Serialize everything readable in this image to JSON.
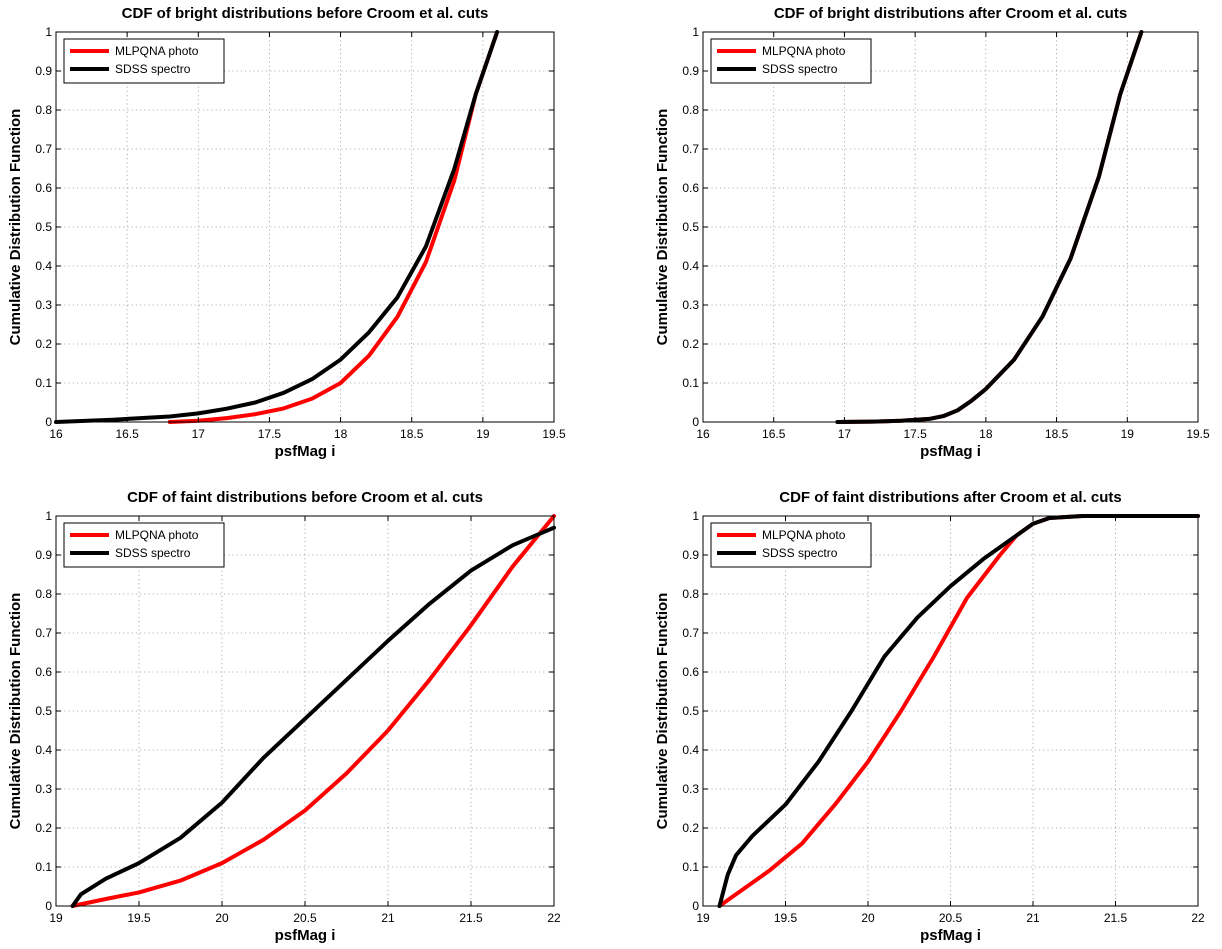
{
  "chart_data": [
    {
      "type": "line",
      "title": "CDF of bright distributions before Croom et al. cuts",
      "xlabel": "psfMag i",
      "ylabel": "Cumulative Distribution Function",
      "xlim": [
        16,
        19.5
      ],
      "ylim": [
        0,
        1
      ],
      "xticks": [
        "16",
        "16.5",
        "17",
        "17.5",
        "18",
        "18.5",
        "19",
        "19.5"
      ],
      "yticks": [
        "0",
        "0.1",
        "0.2",
        "0.3",
        "0.4",
        "0.5",
        "0.6",
        "0.7",
        "0.8",
        "0.9",
        "1"
      ],
      "grid": true,
      "legend_position": "top-left",
      "series": [
        {
          "name": "MLPQNA photo",
          "color": "#ff0000",
          "x": [
            16.8,
            17.0,
            17.2,
            17.4,
            17.6,
            17.8,
            18.0,
            18.2,
            18.4,
            18.6,
            18.8,
            18.95,
            19.1
          ],
          "y": [
            0,
            0.003,
            0.01,
            0.02,
            0.035,
            0.06,
            0.1,
            0.17,
            0.27,
            0.41,
            0.62,
            0.84,
            1.0
          ]
        },
        {
          "name": "SDSS spectro",
          "color": "#000000",
          "x": [
            16.0,
            16.4,
            16.8,
            17.0,
            17.2,
            17.4,
            17.6,
            17.8,
            18.0,
            18.2,
            18.4,
            18.6,
            18.8,
            18.95,
            19.1
          ],
          "y": [
            0,
            0.006,
            0.014,
            0.022,
            0.034,
            0.05,
            0.075,
            0.11,
            0.16,
            0.23,
            0.32,
            0.45,
            0.65,
            0.84,
            1.0
          ]
        }
      ]
    },
    {
      "type": "line",
      "title": "CDF of bright distributions after Croom et al. cuts",
      "xlabel": "psfMag i",
      "ylabel": "Cumulative Distribution Function",
      "xlim": [
        16,
        19.5
      ],
      "ylim": [
        0,
        1
      ],
      "xticks": [
        "16",
        "16.5",
        "17",
        "17.5",
        "18",
        "18.5",
        "19",
        "19.5"
      ],
      "yticks": [
        "0",
        "0.1",
        "0.2",
        "0.3",
        "0.4",
        "0.5",
        "0.6",
        "0.7",
        "0.8",
        "0.9",
        "1"
      ],
      "grid": true,
      "legend_position": "top-left",
      "series": [
        {
          "name": "MLPQNA photo",
          "color": "#ff0000",
          "x": [
            16.95,
            17.2,
            17.4,
            17.6,
            17.7,
            17.8,
            17.9,
            18.0,
            18.2,
            18.4,
            18.6,
            18.8,
            18.95,
            19.1
          ],
          "y": [
            0.0,
            0.001,
            0.003,
            0.008,
            0.015,
            0.03,
            0.055,
            0.085,
            0.16,
            0.27,
            0.42,
            0.63,
            0.84,
            1.0
          ]
        },
        {
          "name": "SDSS spectro",
          "color": "#000000",
          "x": [
            16.95,
            17.2,
            17.4,
            17.6,
            17.7,
            17.8,
            17.9,
            18.0,
            18.2,
            18.4,
            18.6,
            18.8,
            18.95,
            19.1
          ],
          "y": [
            0.0,
            0.001,
            0.003,
            0.008,
            0.015,
            0.03,
            0.055,
            0.085,
            0.16,
            0.27,
            0.42,
            0.63,
            0.84,
            1.0
          ]
        }
      ]
    },
    {
      "type": "line",
      "title": "CDF of faint distributions before Croom et al. cuts",
      "xlabel": "psfMag i",
      "ylabel": "Cumulative Distribution Function",
      "xlim": [
        19,
        22
      ],
      "ylim": [
        0,
        1
      ],
      "xticks": [
        "19",
        "19.5",
        "20",
        "20.5",
        "21",
        "21.5",
        "22"
      ],
      "yticks": [
        "0",
        "0.1",
        "0.2",
        "0.3",
        "0.4",
        "0.5",
        "0.6",
        "0.7",
        "0.8",
        "0.9",
        "1"
      ],
      "grid": true,
      "legend_position": "top-left",
      "series": [
        {
          "name": "MLPQNA photo",
          "color": "#ff0000",
          "x": [
            19.1,
            19.3,
            19.5,
            19.75,
            20.0,
            20.25,
            20.5,
            20.75,
            21.0,
            21.25,
            21.5,
            21.75,
            22.0
          ],
          "y": [
            0.0,
            0.018,
            0.035,
            0.065,
            0.11,
            0.17,
            0.245,
            0.34,
            0.45,
            0.58,
            0.72,
            0.87,
            1.0
          ]
        },
        {
          "name": "SDSS spectro",
          "color": "#000000",
          "x": [
            19.1,
            19.15,
            19.3,
            19.5,
            19.75,
            20.0,
            20.25,
            20.5,
            20.75,
            21.0,
            21.25,
            21.5,
            21.75,
            22.0
          ],
          "y": [
            0.0,
            0.03,
            0.07,
            0.11,
            0.175,
            0.265,
            0.38,
            0.48,
            0.58,
            0.68,
            0.775,
            0.86,
            0.925,
            0.97
          ]
        }
      ]
    },
    {
      "type": "line",
      "title": "CDF of faint distributions after Croom et al. cuts",
      "xlabel": "psfMag i",
      "ylabel": "Cumulative Distribution Function",
      "xlim": [
        19,
        22
      ],
      "ylim": [
        0,
        1
      ],
      "xticks": [
        "19",
        "19.5",
        "20",
        "20.5",
        "21",
        "21.5",
        "22"
      ],
      "yticks": [
        "0",
        "0.1",
        "0.2",
        "0.3",
        "0.4",
        "0.5",
        "0.6",
        "0.7",
        "0.8",
        "0.9",
        "1"
      ],
      "grid": true,
      "legend_position": "top-left",
      "series": [
        {
          "name": "MLPQNA photo",
          "color": "#ff0000",
          "x": [
            19.1,
            19.2,
            19.4,
            19.6,
            19.8,
            20.0,
            20.2,
            20.4,
            20.6,
            20.8,
            20.9,
            21.0,
            21.1,
            21.3,
            21.6,
            22.0
          ],
          "y": [
            0.0,
            0.03,
            0.09,
            0.16,
            0.26,
            0.37,
            0.5,
            0.64,
            0.79,
            0.9,
            0.95,
            0.98,
            0.995,
            1.0,
            1.0,
            1.0
          ]
        },
        {
          "name": "SDSS spectro",
          "color": "#000000",
          "x": [
            19.1,
            19.15,
            19.2,
            19.3,
            19.5,
            19.7,
            19.9,
            20.1,
            20.3,
            20.5,
            20.7,
            20.9,
            21.0,
            21.1,
            21.3,
            21.6,
            22.0
          ],
          "y": [
            0.0,
            0.08,
            0.13,
            0.18,
            0.26,
            0.37,
            0.5,
            0.64,
            0.74,
            0.82,
            0.89,
            0.95,
            0.98,
            0.995,
            1.0,
            1.0,
            1.0
          ]
        }
      ]
    }
  ]
}
